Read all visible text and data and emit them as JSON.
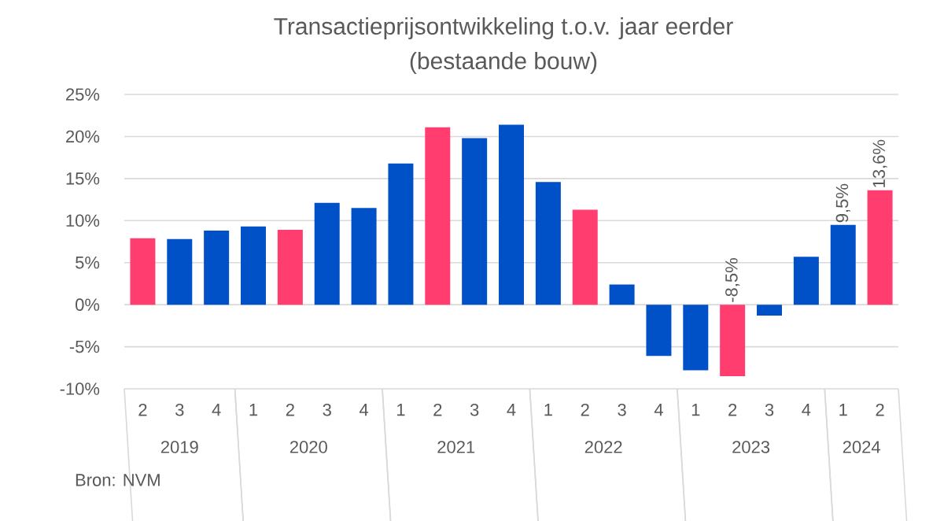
{
  "chart_data": {
    "type": "bar",
    "title": "Transactieprijsontwikkeling t.o.v. jaar eerder",
    "subtitle": "(bestaande bouw)",
    "categories": [
      "2",
      "3",
      "4",
      "1",
      "2",
      "3",
      "4",
      "1",
      "2",
      "3",
      "4",
      "1",
      "2",
      "3",
      "4",
      "1",
      "2",
      "3",
      "4",
      "1",
      "2"
    ],
    "values": [
      7.9,
      7.8,
      8.8,
      9.3,
      8.9,
      12.1,
      11.5,
      16.8,
      21.1,
      19.8,
      21.4,
      14.6,
      11.3,
      2.4,
      -6.1,
      -7.8,
      -8.5,
      -1.3,
      5.7,
      9.5,
      13.6
    ],
    "colors": [
      "#ff3d6e",
      "#0050c8",
      "#0050c8",
      "#0050c8",
      "#ff3d6e",
      "#0050c8",
      "#0050c8",
      "#0050c8",
      "#ff3d6e",
      "#0050c8",
      "#0050c8",
      "#0050c8",
      "#ff3d6e",
      "#0050c8",
      "#0050c8",
      "#0050c8",
      "#ff3d6e",
      "#0050c8",
      "#0050c8",
      "#0050c8",
      "#ff3d6e"
    ],
    "value_labels": [
      null,
      null,
      null,
      null,
      null,
      null,
      null,
      null,
      null,
      null,
      null,
      null,
      null,
      null,
      null,
      null,
      "-8,5%",
      null,
      null,
      "9,5%",
      "13,6%"
    ],
    "ylim": [
      -10,
      25
    ],
    "yticks": [
      {
        "value": -10,
        "label": "-10%"
      },
      {
        "value": -5,
        "label": "-5%"
      },
      {
        "value": 0,
        "label": "0%"
      },
      {
        "value": 5,
        "label": "5%"
      },
      {
        "value": 10,
        "label": "10%"
      },
      {
        "value": 15,
        "label": "15%"
      },
      {
        "value": 20,
        "label": "20%"
      },
      {
        "value": 25,
        "label": "25%"
      }
    ],
    "grid": "y",
    "annotations": [
      "2019",
      "2020",
      "2021",
      "2022",
      "2023",
      "2024",
      "Bron: NVM"
    ]
  }
}
